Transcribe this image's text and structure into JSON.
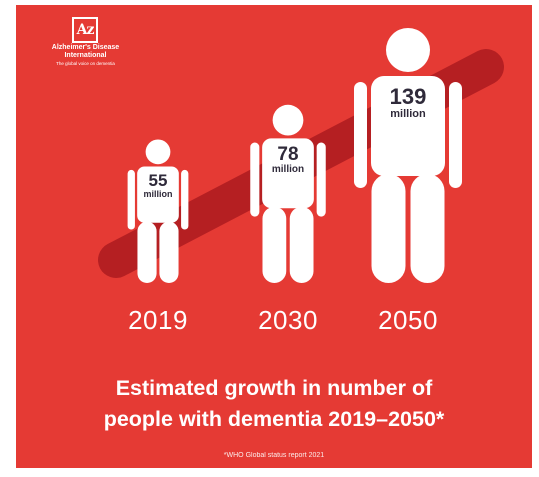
{
  "logo": {
    "letters": "Az",
    "name_line1": "Alzheimer's Disease",
    "name_line2": "International",
    "tagline": "The global voice on dementia"
  },
  "chart_data": {
    "type": "bar",
    "categories": [
      "2019",
      "2030",
      "2050"
    ],
    "values": [
      55,
      78,
      139
    ],
    "value_labels": [
      "55",
      "78",
      "139"
    ],
    "unit": "million",
    "title_line1": "Estimated growth in number of",
    "title_line2": "people with dementia 2019–2050*",
    "footnote": "*WHO Global status report 2021"
  },
  "colors": {
    "background": "#e53a34",
    "figure": "#ffffff",
    "trend_band": "#b51f22",
    "value_text": "#2f2a3a"
  }
}
